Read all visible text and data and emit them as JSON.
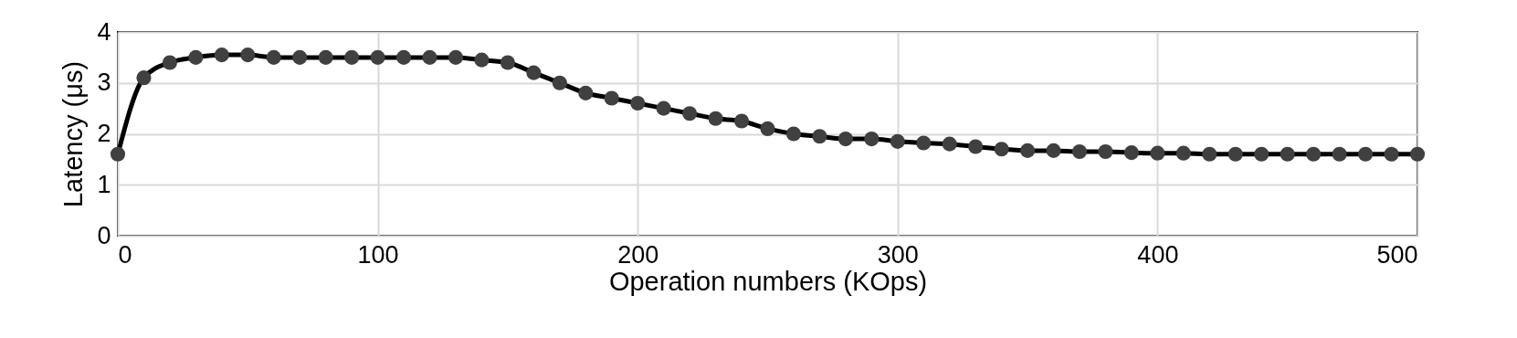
{
  "chart_data": {
    "type": "line",
    "xlabel": "Operation numbers (KOps)",
    "ylabel": "Latency (μs)",
    "x": [
      0,
      10,
      20,
      30,
      40,
      50,
      60,
      70,
      80,
      90,
      100,
      110,
      120,
      130,
      140,
      150,
      160,
      170,
      180,
      190,
      200,
      210,
      220,
      230,
      240,
      250,
      260,
      270,
      280,
      290,
      300,
      310,
      320,
      330,
      340,
      350,
      360,
      370,
      380,
      390,
      400,
      410,
      420,
      430,
      440,
      450,
      460,
      470,
      480,
      490,
      500
    ],
    "series": [
      {
        "color": "#000000",
        "values": [
          1.6,
          3.1,
          3.4,
          3.5,
          3.55,
          3.55,
          3.5,
          3.5,
          3.5,
          3.5,
          3.5,
          3.5,
          3.5,
          3.5,
          3.45,
          3.4,
          3.2,
          3.0,
          2.8,
          2.7,
          2.6,
          2.5,
          2.4,
          2.3,
          2.25,
          2.1,
          2.0,
          1.95,
          1.9,
          1.9,
          1.85,
          1.82,
          1.8,
          1.75,
          1.7,
          1.67,
          1.67,
          1.65,
          1.65,
          1.63,
          1.62,
          1.62,
          1.6,
          1.6,
          1.6,
          1.6,
          1.6,
          1.6,
          1.6,
          1.6,
          1.6
        ]
      }
    ],
    "xlim": [
      0,
      500
    ],
    "xticks": [
      0,
      100,
      200,
      300,
      400,
      500
    ],
    "ylim": [
      0,
      4
    ],
    "yticks": [
      0,
      1,
      2,
      3,
      4
    ],
    "grid": true,
    "marker": "circle",
    "line_style": "solid"
  }
}
